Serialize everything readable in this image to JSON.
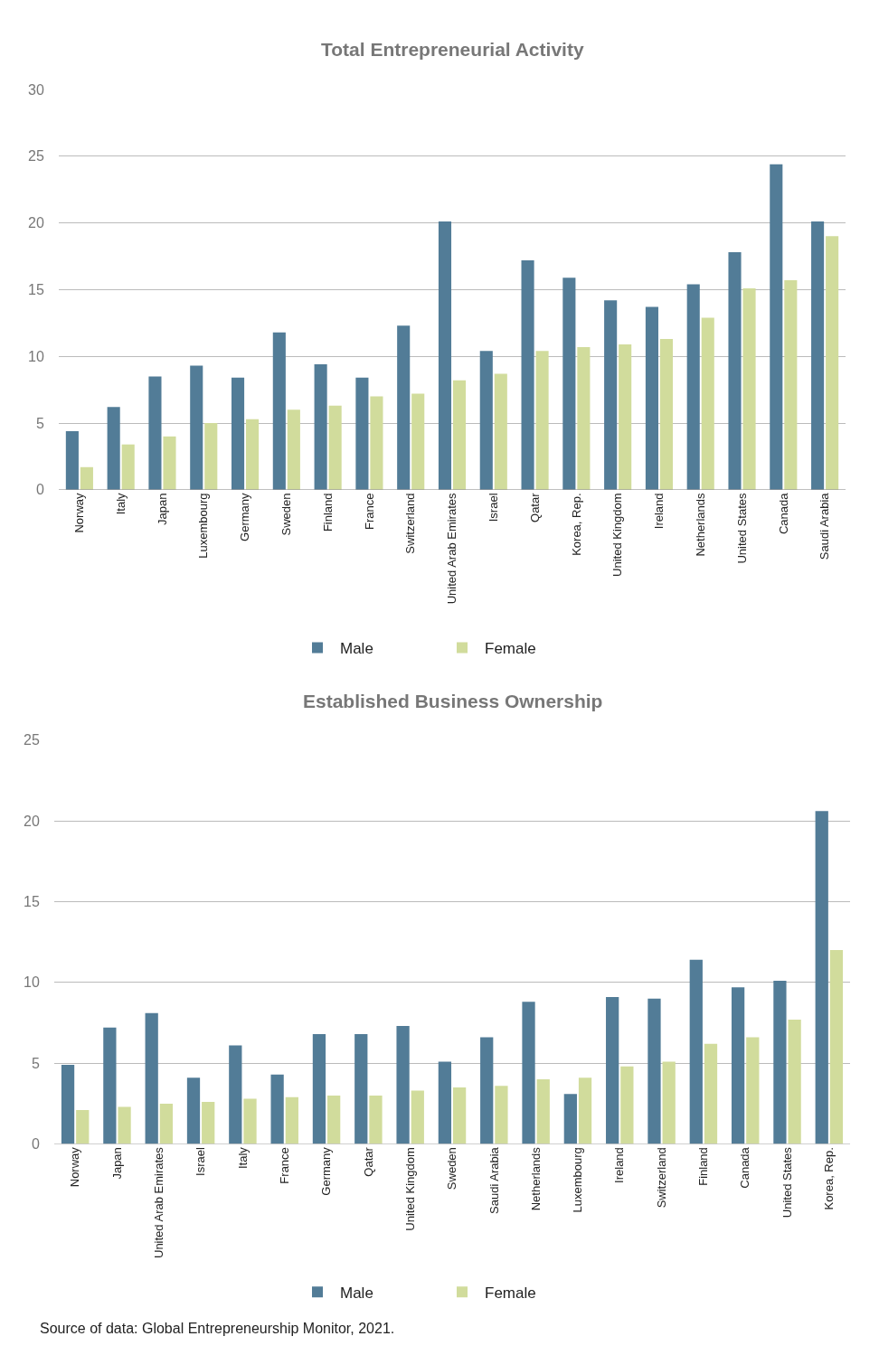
{
  "chart_data": [
    {
      "type": "bar",
      "title": "Total Entrepreneurial Activity",
      "categories": [
        "Norway",
        "Italy",
        "Japan",
        "Luxembourg",
        "Germany",
        "Sweden",
        "Finland",
        "France",
        "Switzerland",
        "United Arab Emirates",
        "Israel",
        "Qatar",
        "Korea, Rep.",
        "United Kingdom",
        "Ireland",
        "Netherlands",
        "United States",
        "Canada",
        "Saudi Arabia"
      ],
      "series": [
        {
          "name": "Male",
          "color": "#527c97",
          "values": [
            4.4,
            6.2,
            8.5,
            9.3,
            8.4,
            11.8,
            9.4,
            8.4,
            12.3,
            20.1,
            10.4,
            17.2,
            15.9,
            14.2,
            13.7,
            15.4,
            17.8,
            24.4,
            20.1
          ]
        },
        {
          "name": "Female",
          "color": "#d1dc9c",
          "values": [
            1.7,
            3.4,
            4.0,
            5.0,
            5.3,
            6.0,
            6.3,
            7.0,
            7.2,
            8.2,
            8.7,
            10.4,
            10.7,
            10.9,
            11.3,
            12.9,
            15.1,
            15.7,
            19.0
          ]
        }
      ],
      "ylim": [
        0,
        30
      ],
      "yticks": [
        0,
        5,
        10,
        15,
        20,
        25,
        30
      ],
      "grid": "y",
      "legend": "bottom"
    },
    {
      "type": "bar",
      "title": "Established Business Ownership",
      "categories": [
        "Norway",
        "Japan",
        "United Arab Emirates",
        "Israel",
        "Italy",
        "France",
        "Germany",
        "Qatar",
        "United Kingdom",
        "Sweden",
        "Saudi Arabia",
        "Netherlands",
        "Luxembourg",
        "Ireland",
        "Switzerland",
        "Finland",
        "Canada",
        "United States",
        "Korea, Rep."
      ],
      "series": [
        {
          "name": "Male",
          "color": "#527c97",
          "values": [
            4.9,
            7.2,
            8.1,
            4.1,
            6.1,
            4.3,
            6.8,
            6.8,
            7.3,
            5.1,
            6.6,
            8.8,
            3.1,
            9.1,
            9.0,
            11.4,
            9.7,
            10.1,
            20.6
          ]
        },
        {
          "name": "Female",
          "color": "#d1dc9c",
          "values": [
            2.1,
            2.3,
            2.5,
            2.6,
            2.8,
            2.9,
            3.0,
            3.0,
            3.3,
            3.5,
            3.6,
            4.0,
            4.1,
            4.8,
            5.1,
            6.2,
            6.6,
            7.7,
            12.0
          ]
        }
      ],
      "ylim": [
        0,
        25
      ],
      "yticks": [
        0,
        5,
        10,
        15,
        20,
        25
      ],
      "grid": "y",
      "legend": "bottom",
      "annotations": [
        "Source of data: Global Entrepreneurship Monitor, 2021."
      ]
    }
  ]
}
